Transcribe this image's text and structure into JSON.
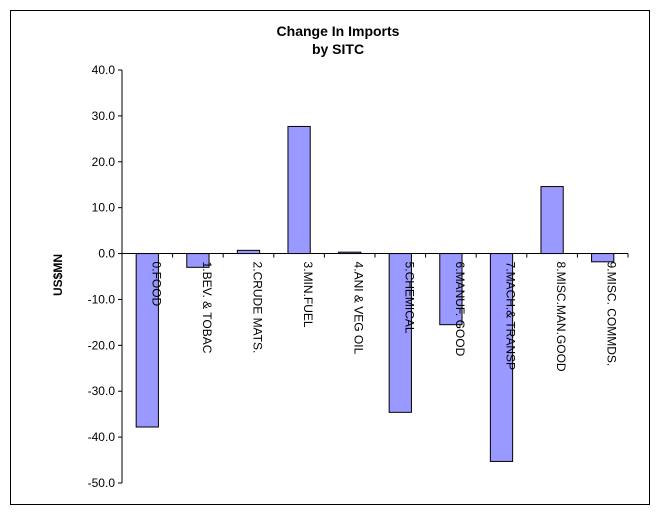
{
  "chart_data": {
    "type": "bar",
    "title": [
      "Change In Imports",
      "by SITC"
    ],
    "xlabel": "",
    "ylabel": "US$MN",
    "ylim": [
      -50,
      40
    ],
    "yticks": [
      "40.0",
      "30.0",
      "20.0",
      "10.0",
      "0.0",
      "-10.0",
      "-20.0",
      "-30.0",
      "-40.0",
      "-50.0"
    ],
    "categories": [
      "0.FOOD",
      "1.BEV. & TOBAC",
      "2.CRUDE MATS.",
      "3.MIN.FUEL",
      "4.ANI & VEG OIL",
      "5.CHEMICAL",
      "6.MANUF. GOOD",
      "7.MACH.& TRANSP",
      "8.MISC.MAN.GOOD",
      "9.MISC. COMMDS."
    ],
    "values": [
      -37.8,
      -3.0,
      0.7,
      27.7,
      0.3,
      -34.6,
      -15.5,
      -45.3,
      14.6,
      -1.8
    ],
    "grid": false,
    "legend": "none",
    "bar_color": "#9999ff",
    "bar_edge_color": "#000000"
  }
}
